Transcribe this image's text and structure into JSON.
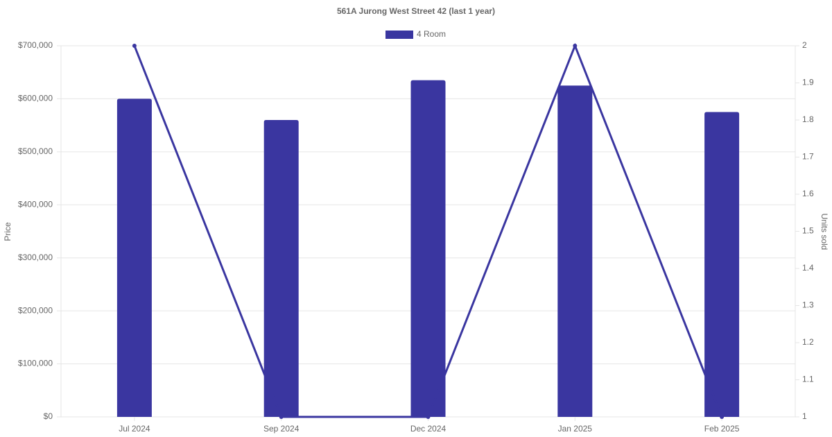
{
  "chart_data": {
    "type": "combo",
    "title": "561A Jurong West Street 42 (last 1 year)",
    "categories": [
      "Jul 2024",
      "Sep 2024",
      "Dec 2024",
      "Jan 2025",
      "Feb 2025"
    ],
    "series": [
      {
        "name": "4 Room",
        "type": "bar",
        "color": "#3a36a0",
        "values": [
          600000,
          560000,
          635000,
          625000,
          575000
        ]
      },
      {
        "type": "line",
        "axis": "y2",
        "color": "#3a36a0",
        "values": [
          2,
          1,
          1,
          2,
          1
        ]
      }
    ],
    "ylabel": "Price",
    "y2label": "Units sold",
    "ylim": [
      0,
      700000
    ],
    "yticks": [
      {
        "value": 0,
        "label": "$0"
      },
      {
        "value": 100000,
        "label": "$100,000"
      },
      {
        "value": 200000,
        "label": "$200,000"
      },
      {
        "value": 300000,
        "label": "$300,000"
      },
      {
        "value": 400000,
        "label": "$400,000"
      },
      {
        "value": 500000,
        "label": "$500,000"
      },
      {
        "value": 600000,
        "label": "$600,000"
      },
      {
        "value": 700000,
        "label": "$700,000"
      }
    ],
    "y2lim": [
      1,
      2
    ],
    "y2ticks": [
      1,
      1.1,
      1.2,
      1.3,
      1.4,
      1.5,
      1.6,
      1.7,
      1.8,
      1.9,
      2
    ],
    "grid": true,
    "legend": "top"
  }
}
